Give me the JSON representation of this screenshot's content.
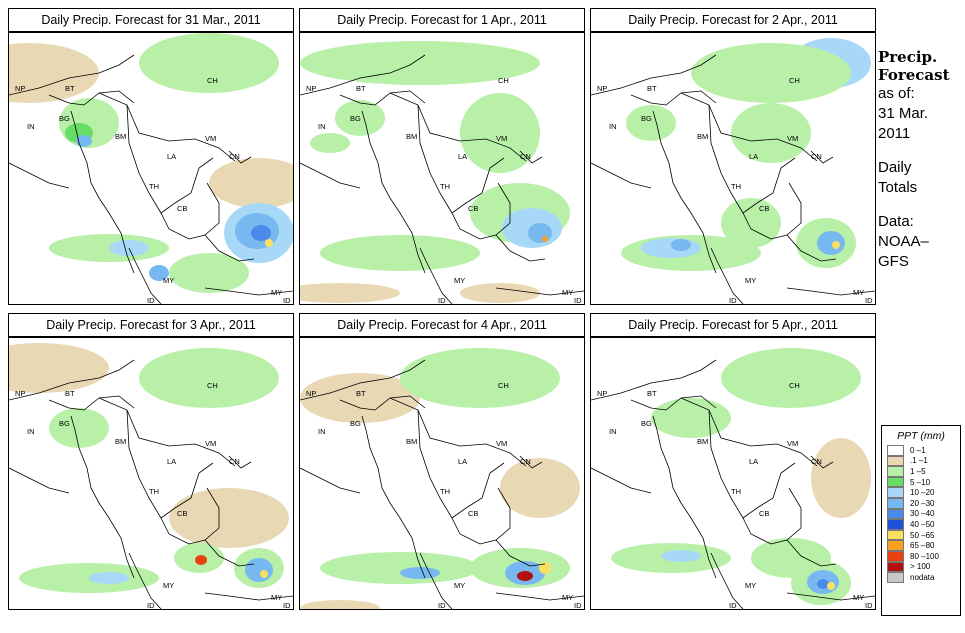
{
  "panels": [
    {
      "title": "Daily Precip. Forecast for  31 Mar., 2011"
    },
    {
      "title": "Daily Precip. Forecast for  1 Apr., 2011"
    },
    {
      "title": "Daily Precip. Forecast for  2 Apr., 2011"
    },
    {
      "title": "Daily Precip. Forecast for  3 Apr., 2011"
    },
    {
      "title": "Daily Precip. Forecast for  4 Apr., 2011"
    },
    {
      "title": "Daily Precip. Forecast for  5 Apr., 2011"
    }
  ],
  "country_labels": [
    "NP",
    "BT",
    "IN",
    "BG",
    "BM",
    "CH",
    "VM",
    "LA",
    "TH",
    "CB",
    "CN",
    "MY",
    "ID",
    "MY",
    "ID"
  ],
  "side": {
    "title_1": "Precip.",
    "title_2": "Forecast",
    "line_1": "as of:",
    "line_2": "31 Mar.",
    "line_3": "2011",
    "line_4": "Daily",
    "line_5": "Totals",
    "line_6": "Data:",
    "line_7": "NOAA–",
    "line_8": "GFS"
  },
  "legend": {
    "title": "PPT (mm)",
    "items": [
      {
        "label": "0 –1",
        "color": "#ffffff"
      },
      {
        "label": ".1 –1",
        "color": "#e8d8b4"
      },
      {
        "label": "1 –5",
        "color": "#b8f0a8"
      },
      {
        "label": "5 –10",
        "color": "#66dd66"
      },
      {
        "label": "10 –20",
        "color": "#a8d8f8"
      },
      {
        "label": "20 –30",
        "color": "#78b8f0"
      },
      {
        "label": "30 –40",
        "color": "#4a8ae8"
      },
      {
        "label": "40 –50",
        "color": "#2050d8"
      },
      {
        "label": "50 –65",
        "color": "#f8e060"
      },
      {
        "label": "65 –80",
        "color": "#f8a020"
      },
      {
        "label": "80 –100",
        "color": "#e84010"
      },
      {
        "label": "> 100",
        "color": "#b01010"
      },
      {
        "label": "nodata",
        "color": "#c8c8c8"
      }
    ]
  }
}
